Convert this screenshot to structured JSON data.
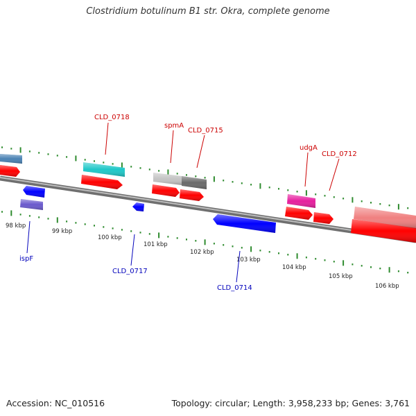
{
  "title": "Clostridium botulinum B1 str. Okra, complete genome",
  "footer": {
    "accession": "Accession: NC_010516",
    "topology": "Topology: circular; Length: 3,958,233 bp; Genes: 3,761"
  },
  "colors": {
    "background": "#ffffff",
    "backbone": "#8c8c8c",
    "tick": "#2e8b2e",
    "forward_gene": "#ff0000",
    "reverse_gene": "#0000ff",
    "forward_label": "#cc0000",
    "reverse_label": "#0000bb"
  },
  "ruler": {
    "labels": [
      "98 kbp",
      "99 kbp",
      "100 kbp",
      "101 kbp",
      "102 kbp",
      "103 kbp",
      "104 kbp",
      "105 kbp",
      "106 kbp"
    ]
  },
  "gene_labels": {
    "forward": [
      "CLD_0718",
      "spmA",
      "CLD_0715",
      "udgA",
      "CLD_0712"
    ],
    "reverse": [
      "ispF",
      "CLD_0717",
      "CLD_0714"
    ]
  }
}
